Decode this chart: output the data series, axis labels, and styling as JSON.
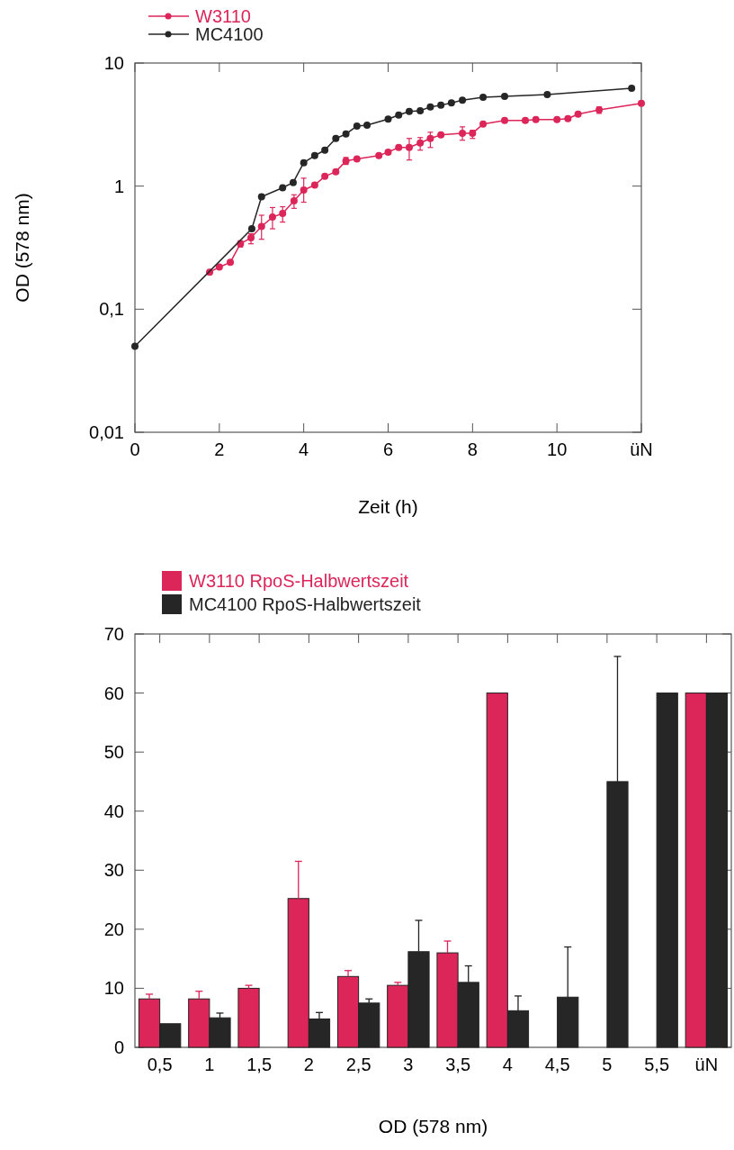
{
  "chart_data": [
    {
      "type": "line",
      "xlabel": "Zeit (h)",
      "ylabel": "OD (578 nm)",
      "log": "y",
      "xlim": [
        0,
        12
      ],
      "xticks": [
        0,
        2,
        4,
        6,
        8,
        10,
        {
          "value": 12,
          "label": "üN"
        }
      ],
      "ylim": [
        0.01,
        10
      ],
      "yticks": [
        {
          "value": 0.01,
          "label": "0,01"
        },
        {
          "value": 0.1,
          "label": "0,1"
        },
        1,
        10
      ],
      "legend": "top left",
      "marker": "circle",
      "line_style": "solid",
      "grid": false,
      "series": [
        {
          "name": "W3110",
          "color": "#dc2559",
          "x": [
            1.77,
            2.0,
            2.26,
            2.5,
            2.75,
            3.0,
            3.26,
            3.5,
            3.77,
            4.0,
            4.26,
            4.5,
            4.76,
            5.0,
            5.26,
            5.78,
            6.0,
            6.25,
            6.5,
            6.76,
            7.0,
            7.25,
            7.76,
            8.0,
            8.25,
            8.76,
            9.25,
            9.5,
            10.0,
            10.26,
            10.5,
            11.0,
            12
          ],
          "values": [
            0.2,
            0.22,
            0.24,
            0.34,
            0.38,
            0.47,
            0.56,
            0.6,
            0.76,
            0.93,
            1.02,
            1.2,
            1.31,
            1.6,
            1.66,
            1.77,
            1.89,
            2.06,
            2.06,
            2.24,
            2.44,
            2.61,
            2.69,
            2.69,
            3.19,
            3.41,
            3.41,
            3.47,
            3.47,
            3.53,
            3.84,
            4.17,
            4.7
          ],
          "errors": [
            null,
            null,
            null,
            [
              0.32,
              0.36
            ],
            [
              0.34,
              0.41
            ],
            [
              0.37,
              0.58
            ],
            [
              0.45,
              0.67
            ],
            [
              0.51,
              0.68
            ],
            [
              0.66,
              0.85
            ],
            [
              0.74,
              1.16
            ],
            null,
            null,
            null,
            [
              1.5,
              1.71
            ],
            null,
            null,
            null,
            null,
            [
              1.63,
              2.44
            ],
            [
              1.96,
              2.48
            ],
            [
              2.06,
              2.74
            ],
            null,
            [
              2.36,
              3.03
            ],
            [
              2.44,
              2.84
            ],
            null,
            null,
            null,
            null,
            null,
            null,
            null,
            [
              3.9,
              4.4
            ],
            null
          ]
        },
        {
          "name": "MC4100",
          "color": "#262626",
          "x": [
            0,
            2.77,
            3.0,
            3.5,
            3.75,
            4.0,
            4.26,
            4.5,
            4.76,
            5.0,
            5.26,
            5.5,
            6.0,
            6.25,
            6.5,
            6.76,
            7.0,
            7.25,
            7.5,
            7.76,
            8.25,
            8.76,
            9.77,
            11.77
          ],
          "values": [
            0.05,
            0.45,
            0.82,
            0.97,
            1.07,
            1.55,
            1.77,
            1.96,
            2.44,
            2.65,
            3.08,
            3.13,
            3.5,
            3.78,
            4.04,
            4.1,
            4.4,
            4.54,
            4.75,
            5.0,
            5.28,
            5.37,
            5.55,
            6.25
          ]
        }
      ]
    },
    {
      "type": "bar",
      "xlabel": "OD (578 nm)",
      "categories": [
        "0,5",
        "1",
        "1,5",
        "2",
        "2,5",
        "3",
        "3,5",
        "4",
        "4,5",
        "5",
        "5,5",
        "üN"
      ],
      "ylim": [
        0,
        70
      ],
      "yticks": [
        0,
        10,
        20,
        30,
        40,
        50,
        60,
        70
      ],
      "legend": "top left",
      "grid": false,
      "series": [
        {
          "name": "W3110 RpoS-Halbwertszeit",
          "color": "#dc2559",
          "values": [
            8.2,
            8.2,
            10,
            25.2,
            12,
            10.5,
            16,
            60,
            null,
            null,
            null,
            60
          ],
          "errors": [
            [
              8.2,
              9
            ],
            [
              8.2,
              9.5
            ],
            [
              10,
              10.5
            ],
            [
              25.2,
              31.5
            ],
            [
              12,
              13
            ],
            [
              10.5,
              11
            ],
            [
              16,
              18
            ],
            null,
            null,
            null,
            null,
            null
          ]
        },
        {
          "name": "MC4100 RpoS-Halbwertszeit",
          "color": "#262626",
          "values": [
            4,
            5,
            null,
            4.8,
            7.5,
            16.2,
            11,
            6.2,
            8.5,
            45,
            60,
            60
          ],
          "errors": [
            null,
            [
              5,
              5.8
            ],
            null,
            [
              4.8,
              5.9
            ],
            [
              7.5,
              8.2
            ],
            [
              16.2,
              21.5
            ],
            [
              11,
              13.8
            ],
            [
              6.2,
              8.7
            ],
            [
              8.5,
              17
            ],
            [
              45,
              66.2
            ],
            null,
            null
          ]
        }
      ]
    }
  ]
}
